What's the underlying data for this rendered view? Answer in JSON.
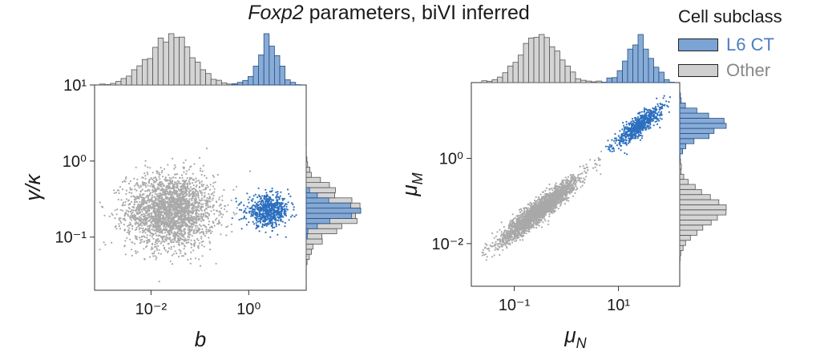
{
  "title": {
    "gene": "Foxp2",
    "rest": " parameters, biVI inferred"
  },
  "legend": {
    "title": "Cell subclass",
    "items": [
      {
        "label": "L6 CT",
        "color": "#4a7fc1",
        "fill": "#7ba3d4"
      },
      {
        "label": "Other",
        "color": "#888888",
        "fill": "#cfcfcf"
      }
    ]
  },
  "chart_data": [
    {
      "type": "scatter",
      "xlabel": "b",
      "ylabel": "γ/κ",
      "xscale": "log",
      "yscale": "log",
      "xlim": [
        0.0007,
        15
      ],
      "ylim": [
        0.02,
        10
      ],
      "xticks": [
        {
          "value": 0.01,
          "label": "10⁻²"
        },
        {
          "value": 1,
          "label": "10⁰"
        }
      ],
      "yticks": [
        {
          "value": 10,
          "label": "10¹"
        },
        {
          "value": 1,
          "label": "10⁰"
        },
        {
          "value": 0.1,
          "label": "10⁻¹"
        }
      ],
      "series": [
        {
          "name": "Other",
          "color": "#a9a9a9",
          "n": 2600,
          "center": [
            0.025,
            0.22
          ],
          "spread_log10": [
            0.45,
            0.24
          ]
        },
        {
          "name": "L6 CT",
          "color": "#2c6fbf",
          "n": 650,
          "center": [
            2.5,
            0.22
          ],
          "spread_log10": [
            0.22,
            0.1
          ]
        }
      ],
      "marginal_x": "top",
      "marginal_y": "right"
    },
    {
      "type": "scatter",
      "xlabel": "μN",
      "ylabel": "μM",
      "xscale": "log",
      "yscale": "log",
      "xlim": [
        0.015,
        150
      ],
      "ylim": [
        0.001,
        60
      ],
      "xticks": [
        {
          "value": 0.1,
          "label": "10⁻¹"
        },
        {
          "value": 10,
          "label": "10¹"
        }
      ],
      "yticks": [
        {
          "value": 1,
          "label": "10⁰"
        },
        {
          "value": 0.01,
          "label": "10⁻²"
        }
      ],
      "series": [
        {
          "name": "Other",
          "color": "#a9a9a9",
          "n": 2600,
          "center": [
            0.3,
            0.06
          ],
          "spread_log10": [
            0.35,
            0.35
          ]
        },
        {
          "name": "L6 CT",
          "color": "#2c6fbf",
          "n": 650,
          "center": [
            25,
            6
          ],
          "spread_log10": [
            0.22,
            0.22
          ]
        }
      ],
      "marginal_x": "top",
      "marginal_y": "right"
    }
  ]
}
